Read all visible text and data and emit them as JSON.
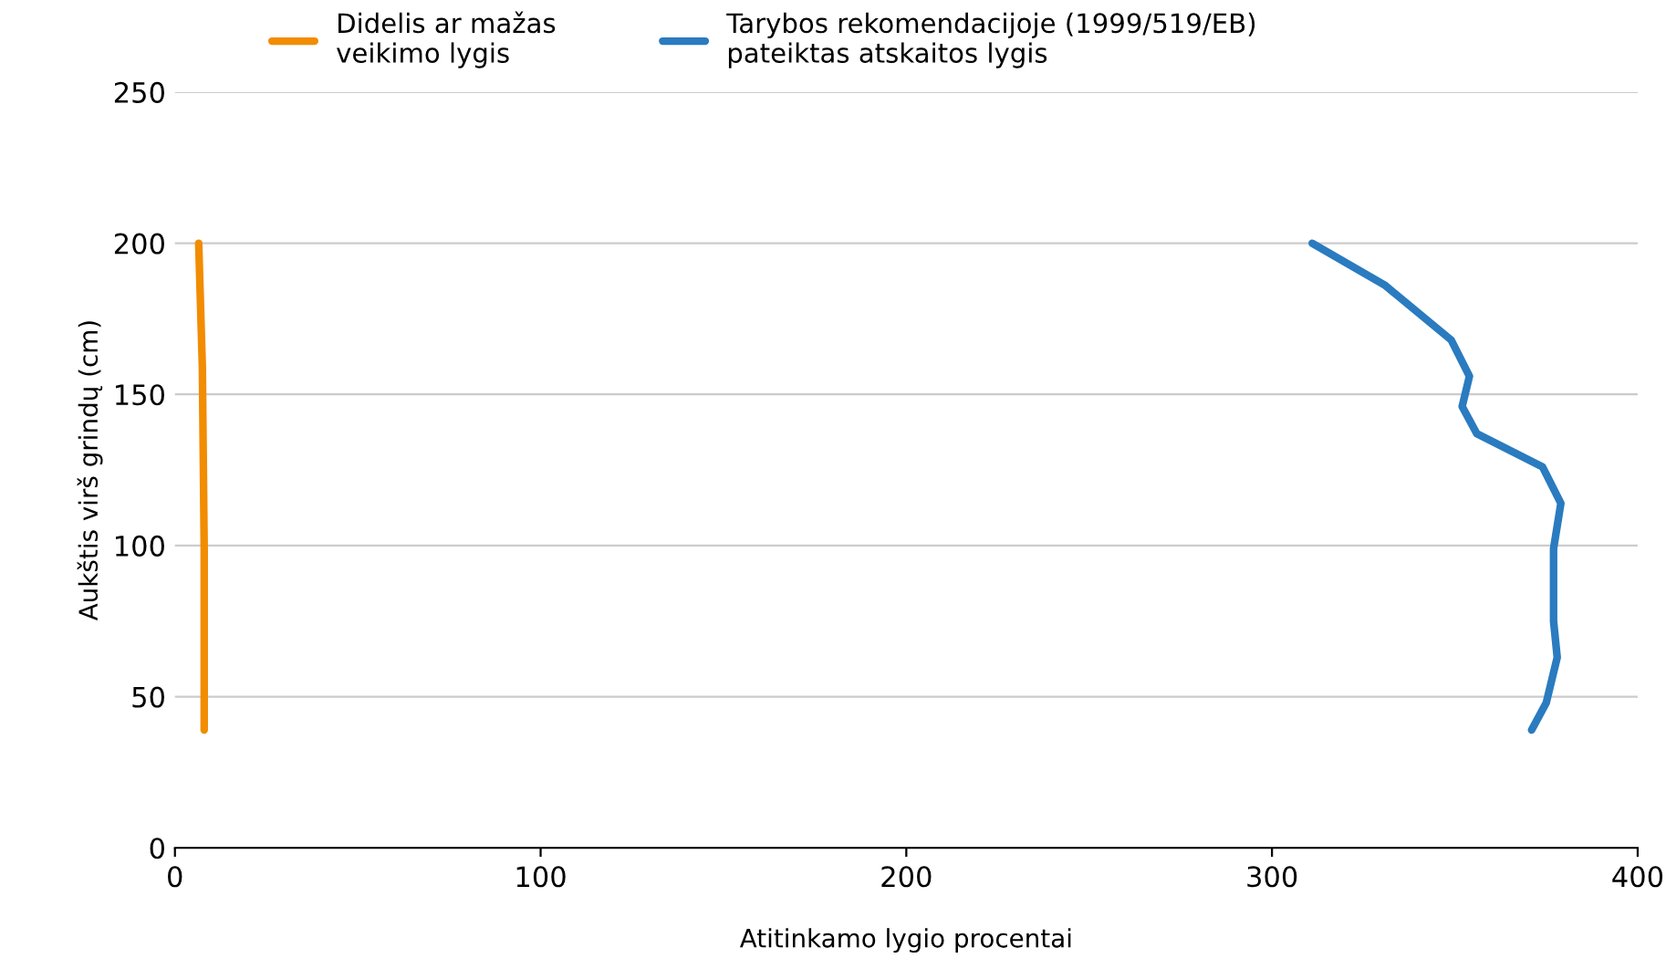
{
  "chart_data": {
    "type": "line",
    "xlabel": "Atitinkamo lygio procentai",
    "ylabel": "Aukštis virš grindų (cm)",
    "xlim": [
      0,
      400
    ],
    "xticks": [
      0,
      100,
      200,
      300,
      400
    ],
    "ylim": [
      0,
      250
    ],
    "yticks": [
      0,
      50,
      100,
      150,
      200,
      250
    ],
    "grid": "y",
    "legend": "top",
    "series": [
      {
        "name": "Didelis ar mažas\nveikimo lygis",
        "color": "#f28c00",
        "x": [
          6.5,
          7.5,
          8,
          8
        ],
        "values": [
          200,
          159,
          99,
          39
        ]
      },
      {
        "name": "Tarybos rekomendacijoje (1999/519/EB)\npateiktas atskaitos lygis",
        "color": "#2a7bbf",
        "x": [
          311,
          331,
          349,
          354,
          352,
          356,
          374,
          379,
          377,
          377,
          378,
          375,
          371
        ],
        "values": [
          200,
          186,
          168,
          156,
          146,
          137,
          126,
          114,
          99,
          75,
          63,
          48,
          39
        ]
      }
    ]
  }
}
